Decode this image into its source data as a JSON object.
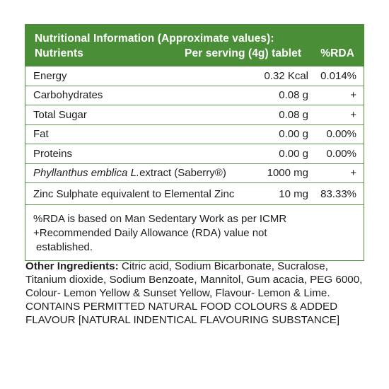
{
  "header": {
    "title": "Nutritional Information (Approximate values):",
    "col_nutrients": "Nutrients",
    "col_serving": "Per serving (4g) tablet",
    "col_rda": "%RDA"
  },
  "rows": [
    {
      "name": "Energy",
      "serving": "0.32 Kcal",
      "rda": "0.014%"
    },
    {
      "name": "Carbohydrates",
      "serving": "0.08 g",
      "rda": "+"
    },
    {
      "name": "Total Sugar",
      "serving": "0.08 g",
      "rda": "+"
    },
    {
      "name": "Fat",
      "serving": "0.00 g",
      "rda": "0.00%"
    },
    {
      "name": "Proteins",
      "serving": "0.00 g",
      "rda": "0.00%"
    },
    {
      "name_italic": "Phyllanthus emblica L.",
      "name_rest": "extract (Saberry®)",
      "serving": "1000 mg",
      "rda": "+"
    },
    {
      "name": "Zinc Sulphate equivalent to Elemental Zinc",
      "serving": "10 mg",
      "rda": "83.33%"
    }
  ],
  "notes": {
    "line1": "%RDA is based on Man Sedentary Work as per ICMR",
    "line2": "+Recommended Daily Allowance (RDA) value not",
    "line3": "established."
  },
  "ingredients": {
    "label": "Other Ingredients:",
    "text": " Citric acid, Sodium Bicarbonate, Sucralose, Titanium dioxide, Sodium Benzoate, Mannitol, Gum acacia, PEG 6000, Colour- Lemon Yellow & Sunset Yellow, Flavour- Lemon & Lime.",
    "caps": "CONTAINS PERMITTED NATURAL FOOD COLOURS & ADDED FLAVOUR [NATURAL INDENTICAL FLAVOURING SUBSTANCE]"
  },
  "colors": {
    "header_green": "#4a8f37",
    "text": "#1e1e1e"
  }
}
